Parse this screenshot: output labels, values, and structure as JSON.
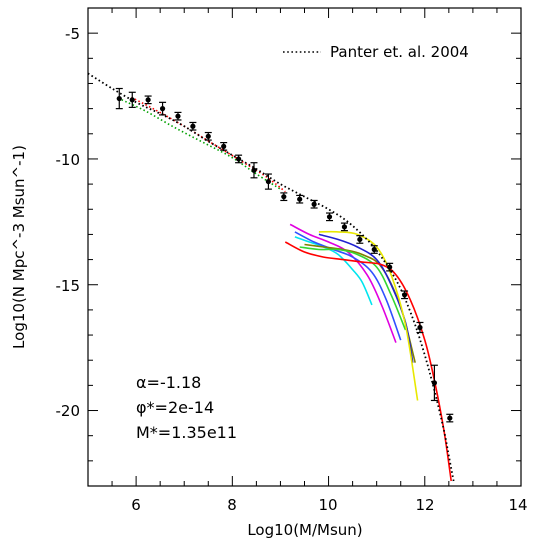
{
  "chart_data": {
    "type": "line",
    "xlabel": "Log10(M/Msun)",
    "ylabel": "Log10(N Mpc^-3 Msun^-1)",
    "xlim": [
      5,
      14
    ],
    "ylim": [
      -23,
      -4
    ],
    "xticks": [
      "6",
      "8",
      "10",
      "12",
      "14"
    ],
    "yticks": [
      "-5",
      "-10",
      "-15",
      "-20"
    ],
    "legend": {
      "label": "Panter et. al. 2004",
      "placement": "top-right"
    },
    "annotations": [
      "α=-1.18",
      "φ*=2e-14",
      "M*=1.35e11"
    ],
    "reference_curve": {
      "name": "Panter et. al. 2004",
      "style": "dotted",
      "color": "#000000",
      "x": [
        5.0,
        5.5,
        6.0,
        6.5,
        7.0,
        7.5,
        8.0,
        8.5,
        9.0,
        9.5,
        10.0,
        10.4,
        10.8,
        11.1,
        11.4,
        11.6,
        11.8,
        12.0,
        12.2,
        12.4,
        12.5,
        12.6
      ],
      "y": [
        -6.6,
        -7.2,
        -7.75,
        -8.2,
        -8.7,
        -9.3,
        -9.85,
        -10.4,
        -11.0,
        -11.5,
        -12.0,
        -12.5,
        -13.2,
        -13.9,
        -14.8,
        -15.6,
        -16.6,
        -17.8,
        -19.2,
        -20.8,
        -21.8,
        -22.8
      ]
    },
    "points": {
      "x": [
        5.65,
        5.92,
        6.25,
        6.55,
        6.87,
        7.18,
        7.5,
        7.82,
        8.13,
        8.45,
        8.75,
        9.07,
        9.4,
        9.7,
        10.02,
        10.33,
        10.65,
        10.95,
        11.27,
        11.58,
        11.9,
        12.2,
        12.52
      ],
      "y": [
        -7.6,
        -7.65,
        -7.65,
        -8.0,
        -8.3,
        -8.7,
        -9.1,
        -9.5,
        -10.0,
        -10.45,
        -10.9,
        -11.5,
        -11.6,
        -11.8,
        -12.3,
        -12.7,
        -13.2,
        -13.6,
        -14.3,
        -15.4,
        -16.7,
        -18.9,
        -20.3
      ],
      "err": [
        0.4,
        0.3,
        0.15,
        0.25,
        0.15,
        0.15,
        0.15,
        0.15,
        0.15,
        0.3,
        0.3,
        0.15,
        0.15,
        0.15,
        0.15,
        0.15,
        0.15,
        0.15,
        0.15,
        0.15,
        0.2,
        0.7,
        0.15
      ]
    },
    "series": [
      {
        "color": "#00e5ee",
        "x": [
          9.3,
          9.6,
          9.9,
          10.2,
          10.5,
          10.7,
          10.9
        ],
        "y": [
          -13.1,
          -13.3,
          -13.5,
          -13.8,
          -14.4,
          -14.9,
          -15.8
        ]
      },
      {
        "color": "#e000e0",
        "x": [
          9.2,
          9.6,
          10.0,
          10.4,
          10.8,
          11.1,
          11.4
        ],
        "y": [
          -12.6,
          -13.0,
          -13.3,
          -13.7,
          -14.6,
          -15.8,
          -17.3
        ]
      },
      {
        "color": "#3050ff",
        "x": [
          9.3,
          9.7,
          10.1,
          10.5,
          10.9,
          11.2,
          11.5
        ],
        "y": [
          -12.9,
          -13.3,
          -13.6,
          -13.9,
          -14.5,
          -15.6,
          -17.2
        ]
      },
      {
        "color": "#808000",
        "x": [
          9.5,
          9.9,
          10.3,
          10.7,
          11.1,
          11.5,
          11.8
        ],
        "y": [
          -13.4,
          -13.5,
          -13.6,
          -13.8,
          -14.3,
          -15.9,
          -18.1
        ]
      },
      {
        "color": "#33d633",
        "x": [
          9.4,
          9.8,
          10.2,
          10.6,
          11.0,
          11.3,
          11.6
        ],
        "y": [
          -13.5,
          -13.6,
          -13.6,
          -13.8,
          -14.3,
          -15.4,
          -16.8
        ]
      },
      {
        "color": "#2020d0",
        "x": [
          9.8,
          10.2,
          10.6,
          11.0,
          11.3,
          11.6,
          11.75
        ],
        "y": [
          -13.0,
          -13.2,
          -13.5,
          -14.0,
          -15.0,
          -16.5,
          -18.1
        ]
      },
      {
        "color": "#e8e800",
        "x": [
          9.8,
          10.2,
          10.6,
          11.0,
          11.3,
          11.6,
          11.85
        ],
        "y": [
          -12.9,
          -12.9,
          -13.0,
          -13.5,
          -14.6,
          -16.6,
          -19.6
        ]
      },
      {
        "color": "#ff0000",
        "x": [
          9.1,
          9.5,
          9.9,
          10.3,
          10.7,
          11.1,
          11.4,
          11.7,
          12.0,
          12.2,
          12.4,
          12.55
        ],
        "y": [
          -13.3,
          -13.7,
          -13.9,
          -14.0,
          -14.1,
          -14.2,
          -14.6,
          -15.6,
          -17.2,
          -18.8,
          -20.8,
          -22.8
        ]
      },
      {
        "color": "#00a000",
        "style": "dotted",
        "x": [
          5.7,
          6.2,
          6.8,
          7.4,
          8.0,
          8.5,
          9.0
        ],
        "y": [
          -7.65,
          -8.1,
          -8.75,
          -9.35,
          -9.95,
          -10.6,
          -11.2
        ]
      },
      {
        "color": "#ff0000",
        "style": "dotted",
        "x": [
          5.9,
          6.4,
          7.0,
          7.6,
          8.2,
          8.7,
          9.1
        ],
        "y": [
          -7.55,
          -8.05,
          -8.7,
          -9.4,
          -10.1,
          -10.7,
          -11.3
        ]
      }
    ]
  }
}
